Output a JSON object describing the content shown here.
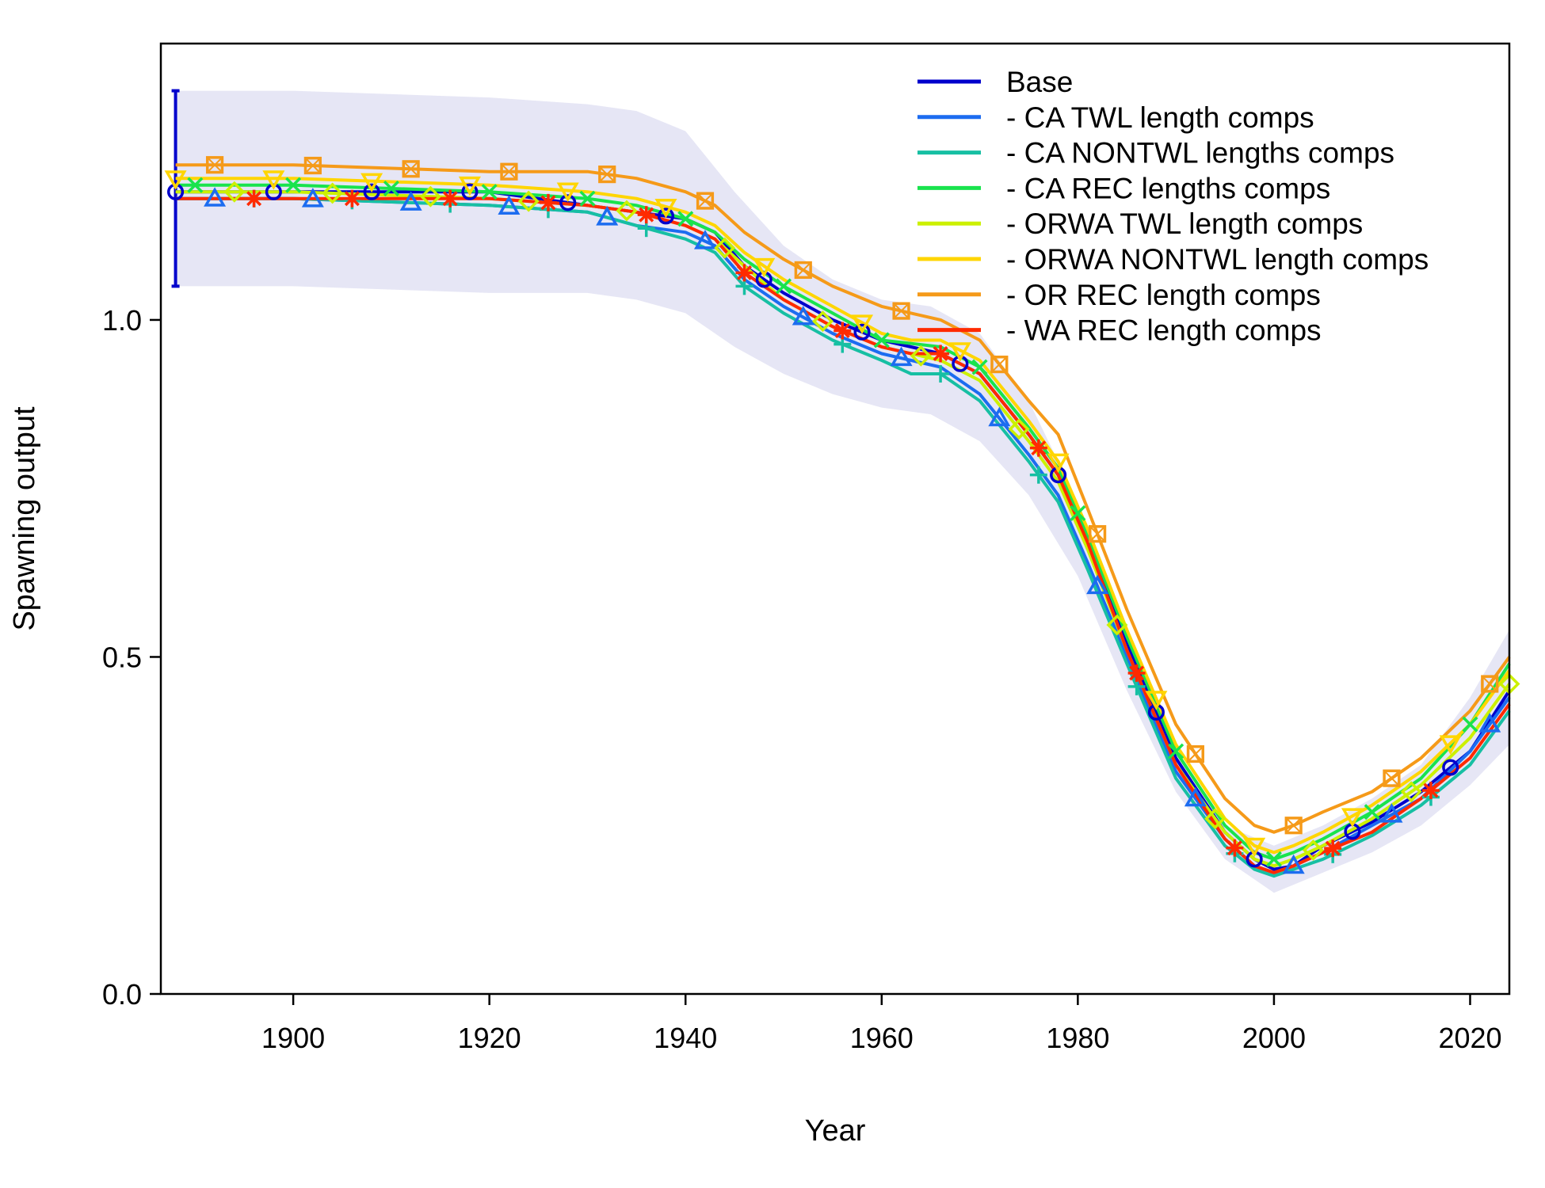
{
  "chart_data": {
    "type": "line",
    "xlabel": "Year",
    "ylabel": "Spawning output",
    "xlim": [
      1886.5,
      2024
    ],
    "ylim": [
      0,
      1.41
    ],
    "x_ticks": [
      1900,
      1920,
      1940,
      1960,
      1980,
      2000,
      2020
    ],
    "x_tick_labels": [
      "1900",
      "1920",
      "1940",
      "1960",
      "1980",
      "2000",
      "2020"
    ],
    "y_ticks": [
      0.0,
      0.5,
      1.0
    ],
    "y_tick_labels": [
      "0.0",
      "0.5",
      "1.0"
    ],
    "legend_position": "top-right",
    "grid": false,
    "uncertainty": {
      "series": "Base",
      "color": "#e6e6f5",
      "x": [
        1888,
        1900,
        1920,
        1930,
        1935,
        1940,
        1945,
        1950,
        1955,
        1960,
        1965,
        1970,
        1975,
        1980,
        1985,
        1990,
        1995,
        2000,
        2005,
        2010,
        2015,
        2020,
        2024
      ],
      "upper": [
        1.34,
        1.34,
        1.33,
        1.32,
        1.31,
        1.28,
        1.19,
        1.11,
        1.06,
        1.03,
        1.02,
        0.98,
        0.88,
        0.73,
        0.52,
        0.35,
        0.25,
        0.22,
        0.25,
        0.29,
        0.34,
        0.44,
        0.54
      ],
      "lower": [
        1.05,
        1.05,
        1.04,
        1.04,
        1.03,
        1.01,
        0.96,
        0.92,
        0.89,
        0.87,
        0.86,
        0.82,
        0.74,
        0.62,
        0.45,
        0.3,
        0.2,
        0.15,
        0.18,
        0.21,
        0.25,
        0.31,
        0.37
      ],
      "start_errorbar": {
        "x": 1888,
        "upper": 1.34,
        "lower": 1.05
      }
    },
    "x": [
      1888,
      1900,
      1920,
      1930,
      1935,
      1940,
      1943,
      1946,
      1950,
      1955,
      1960,
      1963,
      1966,
      1970,
      1975,
      1978,
      1981,
      1985,
      1990,
      1995,
      1998,
      2000,
      2002,
      2005,
      2010,
      2015,
      2020,
      2024
    ],
    "series": [
      {
        "name": "Base",
        "color": "#0000cc",
        "marker": "circle",
        "values": [
          1.19,
          1.19,
          1.19,
          1.17,
          1.16,
          1.15,
          1.13,
          1.08,
          1.04,
          1.0,
          0.97,
          0.96,
          0.95,
          0.92,
          0.83,
          0.77,
          0.67,
          0.52,
          0.35,
          0.24,
          0.2,
          0.185,
          0.19,
          0.22,
          0.255,
          0.3,
          0.36,
          0.45
        ]
      },
      {
        "name": "- CA TWL length comps",
        "color": "#1c6cf0",
        "marker": "triangle",
        "values": [
          1.18,
          1.18,
          1.17,
          1.16,
          1.14,
          1.13,
          1.11,
          1.06,
          1.02,
          0.98,
          0.95,
          0.94,
          0.93,
          0.89,
          0.8,
          0.74,
          0.64,
          0.5,
          0.33,
          0.23,
          0.19,
          0.18,
          0.19,
          0.21,
          0.25,
          0.29,
          0.36,
          0.44
        ]
      },
      {
        "name": "- CA NONTWL lengths comps",
        "color": "#17bfa3",
        "marker": "plus",
        "values": [
          1.18,
          1.18,
          1.17,
          1.16,
          1.14,
          1.12,
          1.1,
          1.05,
          1.01,
          0.97,
          0.94,
          0.92,
          0.92,
          0.88,
          0.79,
          0.73,
          0.63,
          0.49,
          0.32,
          0.22,
          0.185,
          0.175,
          0.185,
          0.2,
          0.235,
          0.28,
          0.34,
          0.42
        ]
      },
      {
        "name": "- CA REC lengths comps",
        "color": "#19e34d",
        "marker": "cross",
        "values": [
          1.2,
          1.2,
          1.19,
          1.18,
          1.17,
          1.15,
          1.13,
          1.09,
          1.05,
          1.01,
          0.97,
          0.965,
          0.96,
          0.93,
          0.84,
          0.78,
          0.68,
          0.53,
          0.36,
          0.25,
          0.21,
          0.2,
          0.21,
          0.23,
          0.27,
          0.32,
          0.4,
          0.49
        ]
      },
      {
        "name": "- ORWA TWL length comps",
        "color": "#ccf000",
        "marker": "diamond",
        "values": [
          1.19,
          1.19,
          1.18,
          1.17,
          1.16,
          1.14,
          1.12,
          1.08,
          1.03,
          0.99,
          0.96,
          0.95,
          0.94,
          0.91,
          0.82,
          0.76,
          0.66,
          0.51,
          0.34,
          0.24,
          0.2,
          0.19,
          0.2,
          0.22,
          0.26,
          0.31,
          0.38,
          0.46
        ]
      },
      {
        "name": "- ORWA NONTWL length comps",
        "color": "#ffd500",
        "marker": "triangle-down",
        "values": [
          1.21,
          1.21,
          1.2,
          1.19,
          1.18,
          1.16,
          1.14,
          1.1,
          1.06,
          1.02,
          0.98,
          0.97,
          0.97,
          0.94,
          0.85,
          0.79,
          0.69,
          0.54,
          0.37,
          0.26,
          0.22,
          0.21,
          0.22,
          0.24,
          0.28,
          0.33,
          0.4,
          0.48
        ]
      },
      {
        "name": "- OR REC length comps",
        "color": "#f59a19",
        "marker": "square-cross",
        "values": [
          1.23,
          1.23,
          1.22,
          1.22,
          1.21,
          1.19,
          1.17,
          1.13,
          1.09,
          1.05,
          1.02,
          1.01,
          1.0,
          0.97,
          0.88,
          0.83,
          0.72,
          0.57,
          0.4,
          0.29,
          0.25,
          0.24,
          0.25,
          0.27,
          0.3,
          0.35,
          0.42,
          0.5
        ]
      },
      {
        "name": "- WA REC length comps",
        "color": "#ff2a00",
        "marker": "asterisk",
        "values": [
          1.18,
          1.18,
          1.18,
          1.17,
          1.16,
          1.14,
          1.12,
          1.07,
          1.03,
          0.99,
          0.96,
          0.95,
          0.95,
          0.92,
          0.83,
          0.77,
          0.67,
          0.51,
          0.34,
          0.23,
          0.19,
          0.18,
          0.19,
          0.21,
          0.24,
          0.29,
          0.35,
          0.43
        ]
      }
    ]
  }
}
